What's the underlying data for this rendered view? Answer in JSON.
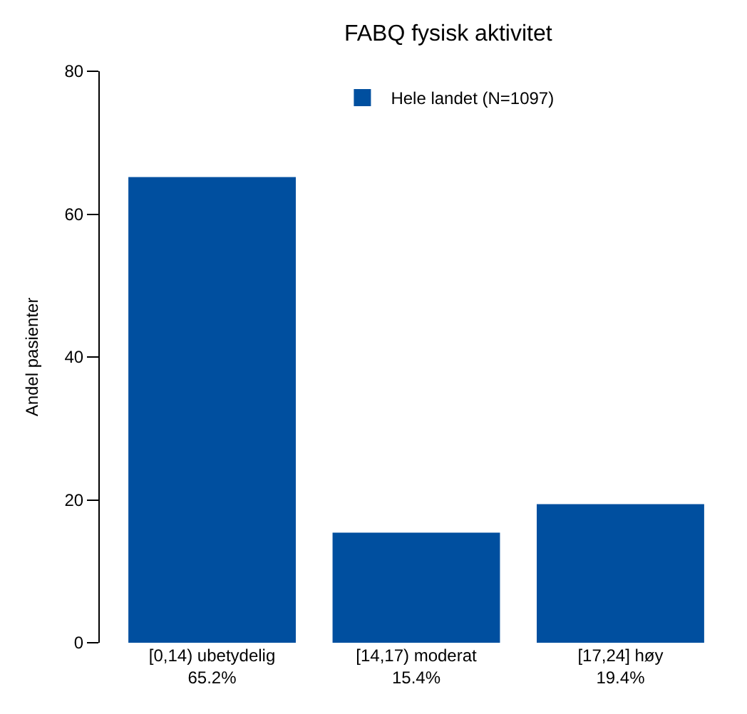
{
  "chart_data": {
    "type": "bar",
    "title": "FABQ fysisk aktivitet",
    "ylabel": "Andel pasienter",
    "categories": [
      "[0,14) ubetydelig",
      "[14,17) moderat",
      "[17,24] høy"
    ],
    "series": [
      {
        "name": "Hele landet (N=1097)",
        "color": "#004f9f",
        "values": [
          65.2,
          15.4,
          19.4
        ],
        "value_labels": [
          "65.2%",
          "15.4%",
          "19.4%"
        ]
      }
    ],
    "ylim": [
      0,
      80
    ],
    "yticks": [
      0,
      20,
      40,
      60,
      80
    ],
    "legend": "top"
  }
}
